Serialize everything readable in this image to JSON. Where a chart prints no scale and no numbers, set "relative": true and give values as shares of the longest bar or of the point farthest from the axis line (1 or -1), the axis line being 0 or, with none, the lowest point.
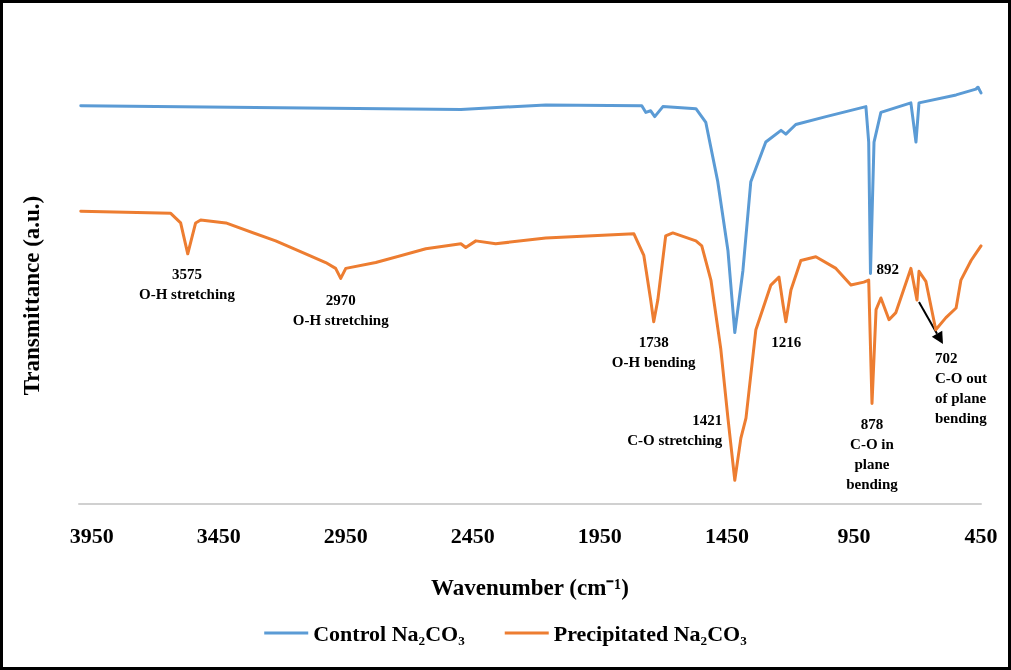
{
  "chart_data": {
    "type": "line",
    "relative": true,
    "xlabel": "Wavenumber (cm⁻¹)",
    "ylabel": "Transmittance (a.u.)",
    "xlim": [
      4000,
      450
    ],
    "xticks": [
      3950,
      3450,
      2950,
      2450,
      1950,
      1450,
      950,
      450
    ],
    "legend": "bottom",
    "grid": false,
    "marker": "none",
    "line_style": "solid",
    "series": [
      {
        "name": "Control Na₂CO₃",
        "color": "#5b9bd5",
        "x": [
          3993,
          2497,
          2163,
          1785,
          1769,
          1750,
          1734,
          1702,
          1572,
          1533,
          1486,
          1446,
          1419,
          1387,
          1356,
          1297,
          1237,
          1218,
          1179,
          1060,
          903,
          892,
          885,
          871,
          844,
          726,
          706,
          694,
          548,
          470,
          462,
          450
        ],
        "values": [
          0.955,
          0.946,
          0.957,
          0.955,
          0.939,
          0.943,
          0.929,
          0.953,
          0.948,
          0.915,
          0.773,
          0.608,
          0.411,
          0.56,
          0.773,
          0.868,
          0.896,
          0.887,
          0.91,
          0.929,
          0.953,
          0.868,
          0.553,
          0.868,
          0.939,
          0.962,
          0.868,
          0.962,
          0.981,
          0.995,
          1.0,
          0.986
        ]
      },
      {
        "name": "Precipitated Na₂CO₃",
        "color": "#ed7d31",
        "x": [
          3993,
          3639,
          3600,
          3572,
          3541,
          3521,
          3422,
          3226,
          3029,
          2990,
          2970,
          2950,
          2832,
          2635,
          2497,
          2478,
          2438,
          2360,
          2163,
          1816,
          1777,
          1750,
          1738,
          1722,
          1691,
          1663,
          1572,
          1549,
          1513,
          1474,
          1446,
          1419,
          1395,
          1375,
          1336,
          1277,
          1245,
          1229,
          1218,
          1198,
          1159,
          1100,
          1021,
          962,
          911,
          892,
          879,
          863,
          844,
          812,
          785,
          726,
          702,
          694,
          667,
          628,
          588,
          548,
          529,
          489,
          450
        ],
        "values": [
          0.702,
          0.697,
          0.674,
          0.6,
          0.674,
          0.681,
          0.674,
          0.631,
          0.579,
          0.565,
          0.541,
          0.565,
          0.579,
          0.612,
          0.624,
          0.615,
          0.631,
          0.624,
          0.638,
          0.648,
          0.596,
          0.489,
          0.437,
          0.489,
          0.643,
          0.65,
          0.631,
          0.619,
          0.537,
          0.371,
          0.206,
          0.057,
          0.158,
          0.206,
          0.418,
          0.525,
          0.544,
          0.478,
          0.437,
          0.513,
          0.584,
          0.593,
          0.565,
          0.525,
          0.532,
          0.537,
          0.241,
          0.466,
          0.494,
          0.442,
          0.459,
          0.565,
          0.489,
          0.558,
          0.534,
          0.418,
          0.447,
          0.47,
          0.537,
          0.584,
          0.619
        ]
      }
    ],
    "annotations": [
      {
        "text": "3575\nO-H stretching",
        "x": 3575,
        "y": 0.6
      },
      {
        "text": "2970\nO-H stretching",
        "x": 2970,
        "y": 0.541
      },
      {
        "text": "1738\nO-H bending",
        "x": 1738,
        "y": 0.437
      },
      {
        "text": "1421\nC-O stretching",
        "x": 1421,
        "y": 0.057
      },
      {
        "text": "1216",
        "x": 1216,
        "y": 0.437
      },
      {
        "text": "892",
        "x": 885,
        "y": 0.553
      },
      {
        "text": "878\nC-O in\nplane\nbending",
        "x": 879,
        "y": 0.241
      },
      {
        "text": "702\nC-O out\nof plane\nbending",
        "x": 702,
        "y": 0.489
      }
    ]
  }
}
